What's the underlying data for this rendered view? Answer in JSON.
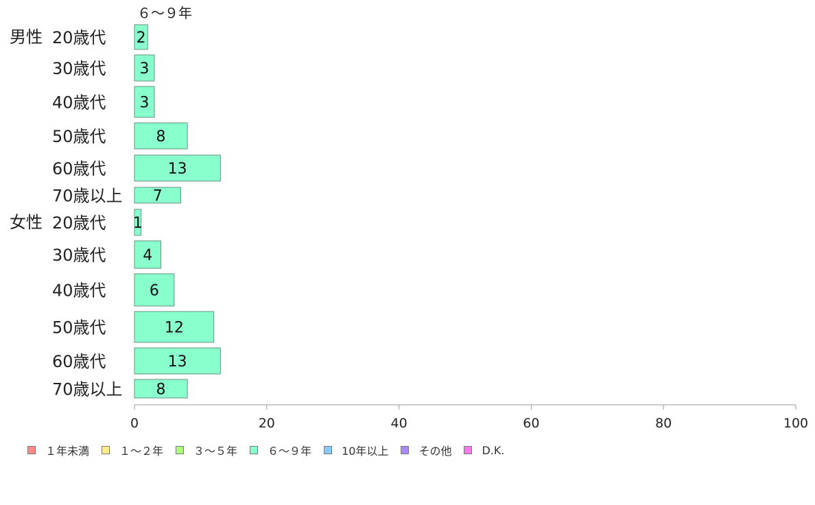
{
  "chart_data": {
    "type": "bar",
    "orientation": "horizontal",
    "series_title": "６～９年",
    "groups": [
      {
        "label": "男性",
        "categories": [
          "20歳代",
          "30歳代",
          "40歳代",
          "50歳代",
          "60歳代",
          "70歳以上"
        ],
        "values": [
          2,
          3,
          3,
          8,
          13,
          7
        ]
      },
      {
        "label": "女性",
        "categories": [
          "20歳代",
          "30歳代",
          "40歳代",
          "50歳代",
          "60歳代",
          "70歳以上"
        ],
        "values": [
          1,
          4,
          6,
          12,
          13,
          8
        ]
      }
    ],
    "xlim": [
      0,
      100
    ],
    "xticks": [
      0,
      20,
      40,
      60,
      80,
      100
    ],
    "grid": false,
    "bar_color": "#88ffcc",
    "legend_position": "bottom",
    "legend": [
      {
        "label": "１年未満",
        "color": "#ff8888"
      },
      {
        "label": "１～２年",
        "color": "#ffee88"
      },
      {
        "label": "３～５年",
        "color": "#aaff77"
      },
      {
        "label": "６～９年",
        "color": "#88ffcc"
      },
      {
        "label": "10年以上",
        "color": "#88ccff"
      },
      {
        "label": "その他",
        "color": "#aa88ff"
      },
      {
        "label": "D.K.",
        "color": "#ff77ee"
      }
    ]
  }
}
